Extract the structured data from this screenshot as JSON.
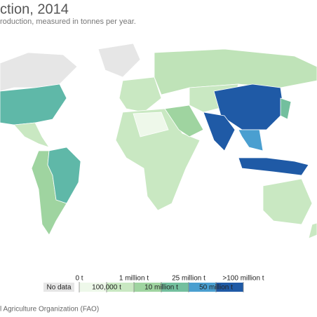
{
  "header": {
    "title": "ction, 2014",
    "subtitle": "roduction, measured in tonnes per year."
  },
  "legend": {
    "no_data": "No data",
    "no_data_color": "#e6e6e6",
    "labels": [
      "0 t",
      "100,000 t",
      "1 million t",
      "10 million t",
      "25 million t",
      "50 million t",
      ">100 million t"
    ],
    "colors": [
      "#eef8ea",
      "#c9e8c2",
      "#9fd4a0",
      "#73bf9e",
      "#4a9fd0",
      "#1f5aa6"
    ]
  },
  "footer": {
    "source": "l Agriculture Organization (FAO)"
  }
}
